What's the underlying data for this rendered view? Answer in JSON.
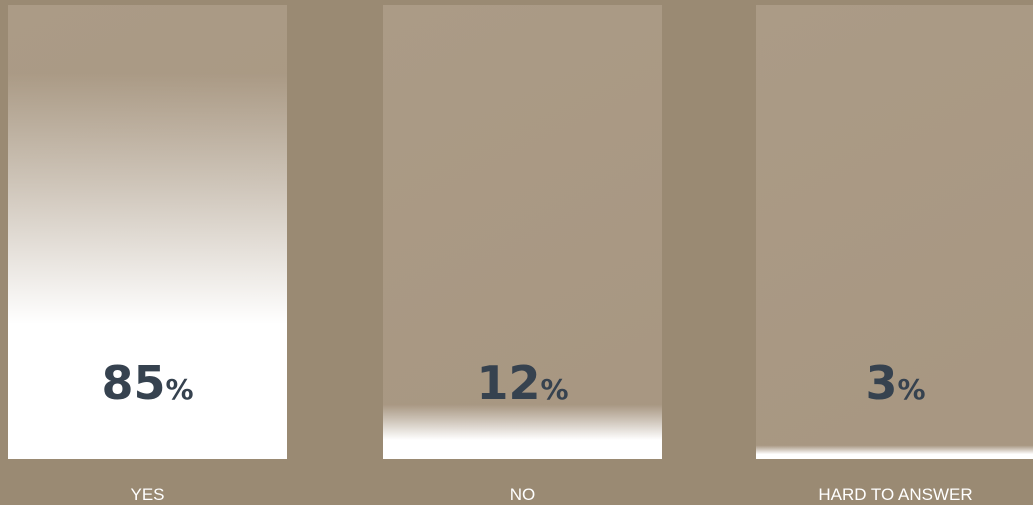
{
  "chart_data": {
    "type": "bar",
    "categories": [
      "YES",
      "NO",
      "HARD TO ANSWER"
    ],
    "values": [
      85,
      12,
      3
    ],
    "value_labels": [
      "85%",
      "12%",
      "3%"
    ],
    "color": "#ffffff",
    "ylim": [
      0,
      100
    ]
  }
}
